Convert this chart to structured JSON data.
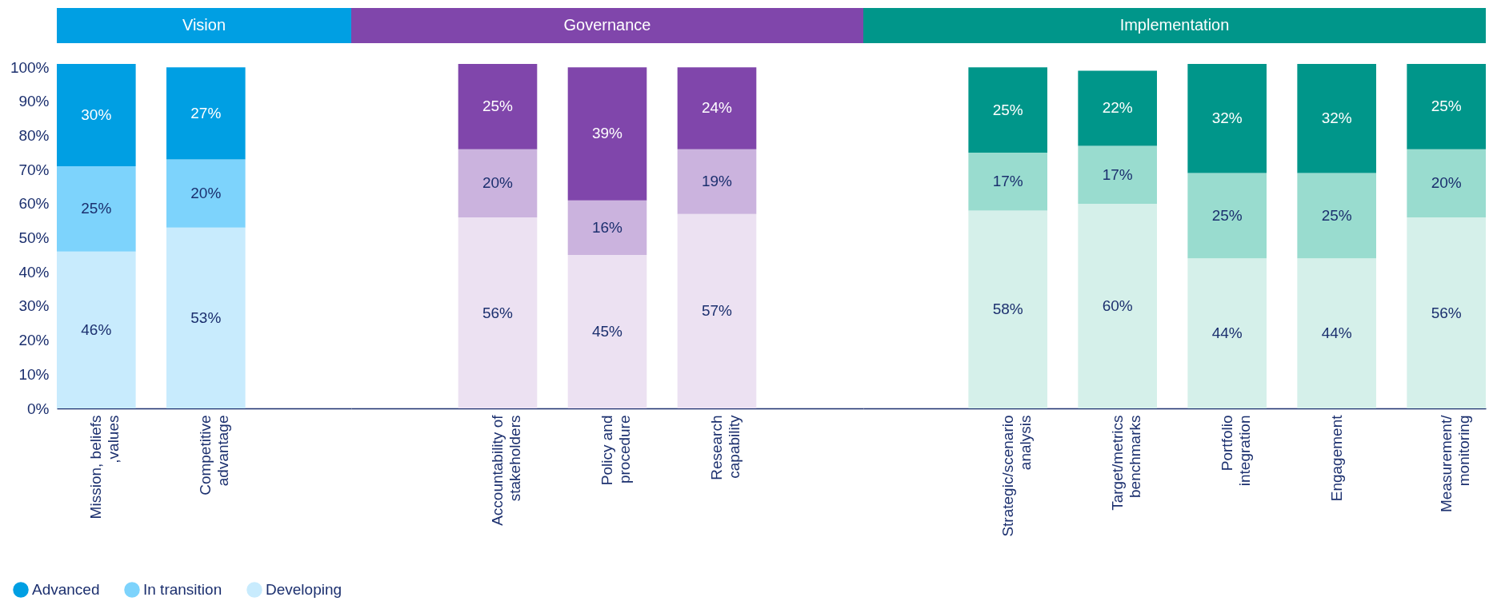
{
  "chart_data": [
    {
      "type": "bar",
      "title": "Vision",
      "stacked": true,
      "legend": "bottom",
      "categories": [
        "Mission, beliefs ,values",
        "Competitive advantage"
      ],
      "ylim": [
        0,
        101
      ],
      "yticks": [
        {
          "value": 0,
          "label": "0%"
        },
        {
          "value": 10,
          "label": "10%"
        },
        {
          "value": 20,
          "label": "20%"
        },
        {
          "value": 30,
          "label": "30%"
        },
        {
          "value": 40,
          "label": "40%"
        },
        {
          "value": 50,
          "label": "50%"
        },
        {
          "value": 60,
          "label": "60%"
        },
        {
          "value": 70,
          "label": "70%"
        },
        {
          "value": 80,
          "label": "80%"
        },
        {
          "value": 90,
          "label": "90%"
        },
        {
          "value": 100,
          "label": "100%"
        }
      ],
      "series": [
        {
          "name": "Developing",
          "color": "#c8ebfd",
          "values": [
            46,
            53
          ],
          "value_labels": [
            "46%",
            "53%"
          ]
        },
        {
          "name": "In transition",
          "color": "#7dd3fc",
          "values": [
            25,
            20
          ],
          "value_labels": [
            "25%",
            "20%"
          ]
        },
        {
          "name": "Advanced",
          "color": "#009fe3",
          "values": [
            30,
            27
          ],
          "value_labels": [
            "30%",
            "27%"
          ]
        }
      ]
    },
    {
      "type": "bar",
      "title": "Governance",
      "stacked": true,
      "tick_labels": "x",
      "categories": [
        "Accountability of stakeholders",
        "Policy and procedure",
        "Research capability"
      ],
      "ylim": [
        0,
        101
      ],
      "series": [
        {
          "color": "#ece1f2",
          "values": [
            56,
            45,
            57
          ],
          "value_labels": [
            "56%",
            "45%",
            "57%"
          ]
        },
        {
          "color": "#cbb3de",
          "values": [
            20,
            16,
            19
          ],
          "value_labels": [
            "20%",
            "16%",
            "19%"
          ]
        },
        {
          "color": "#8046ab",
          "values": [
            25,
            39,
            24
          ],
          "value_labels": [
            "25%",
            "39%",
            "24%"
          ]
        }
      ]
    },
    {
      "type": "bar",
      "title": "Implementation",
      "stacked": true,
      "tick_labels": "x",
      "categories": [
        "Strategic/scenario analysis",
        "Target/metrics benchmarks",
        "Portfolio integration",
        "Engagement",
        "Measurement/ monitoring"
      ],
      "ylim": [
        0,
        101
      ],
      "series": [
        {
          "color": "#d5f0ea",
          "values": [
            58,
            60,
            44,
            44,
            56
          ],
          "value_labels": [
            "58%",
            "60%",
            "44%",
            "44%",
            "56%"
          ]
        },
        {
          "color": "#99dccf",
          "values": [
            17,
            17,
            25,
            25,
            20
          ],
          "value_labels": [
            "17%",
            "17%",
            "25%",
            "25%",
            "20%"
          ]
        },
        {
          "color": "#00968a",
          "values": [
            25,
            22,
            32,
            32,
            25
          ],
          "value_labels": [
            "25%",
            "22%",
            "32%",
            "32%",
            "25%"
          ]
        }
      ]
    }
  ]
}
